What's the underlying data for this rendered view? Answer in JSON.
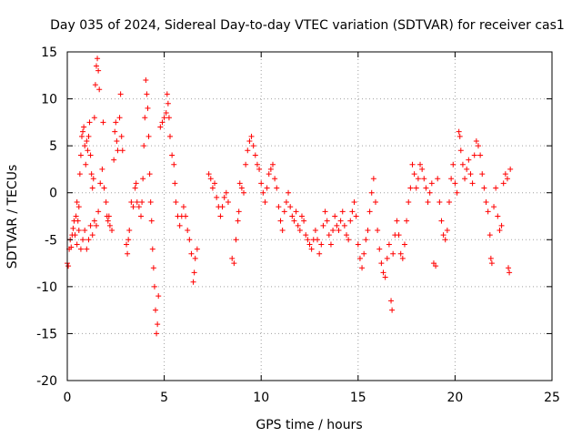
{
  "chart_data": {
    "type": "scatter",
    "title": "Day 035 of 2024, Sidereal Day-to-day VTEC variation (SDTVAR) for receiver cas1",
    "xlabel": "GPS time / hours",
    "ylabel": "SDTVAR / TECUs",
    "xlim": [
      0,
      25
    ],
    "ylim": [
      -20,
      15
    ],
    "xticks": [
      0,
      5,
      10,
      15,
      20,
      25
    ],
    "yticks": [
      -20,
      -15,
      -10,
      -5,
      0,
      5,
      10,
      15
    ],
    "xtick_labels": [
      "0",
      "5",
      "10",
      "15",
      "20",
      "25"
    ],
    "ytick_labels": [
      "-20",
      "-15",
      "-10",
      "-5",
      "0",
      "5",
      "10",
      "15"
    ],
    "grid": true,
    "marker": "+",
    "color": "#ff0000",
    "series": [
      {
        "name": "SDTVAR",
        "points": [
          [
            0.0,
            -7.5
          ],
          [
            0.05,
            -7.8
          ],
          [
            0.1,
            -6.0
          ],
          [
            0.15,
            -5.0
          ],
          [
            0.2,
            -5.8
          ],
          [
            0.25,
            -4.5
          ],
          [
            0.3,
            -3.8
          ],
          [
            0.35,
            -3.0
          ],
          [
            0.4,
            -4.5
          ],
          [
            0.45,
            -2.5
          ],
          [
            0.5,
            -1.0
          ],
          [
            0.55,
            -3.0
          ],
          [
            0.6,
            -1.5
          ],
          [
            0.65,
            2.0
          ],
          [
            0.7,
            4.0
          ],
          [
            0.75,
            6.0
          ],
          [
            0.8,
            6.5
          ],
          [
            0.85,
            7.0
          ],
          [
            0.9,
            5.0
          ],
          [
            0.95,
            3.0
          ],
          [
            1.0,
            5.5
          ],
          [
            1.05,
            4.5
          ],
          [
            1.1,
            6.0
          ],
          [
            1.15,
            7.5
          ],
          [
            1.2,
            4.0
          ],
          [
            1.25,
            2.0
          ],
          [
            1.3,
            0.5
          ],
          [
            1.35,
            1.5
          ],
          [
            1.4,
            8.0
          ],
          [
            1.45,
            11.5
          ],
          [
            1.5,
            13.5
          ],
          [
            1.55,
            14.3
          ],
          [
            1.6,
            13.0
          ],
          [
            1.65,
            11.0
          ],
          [
            0.5,
            -5.5
          ],
          [
            0.6,
            -4.0
          ],
          [
            0.7,
            -6.0
          ],
          [
            0.8,
            -5.0
          ],
          [
            0.9,
            -4.0
          ],
          [
            1.0,
            -6.0
          ],
          [
            1.1,
            -5.0
          ],
          [
            1.2,
            -3.5
          ],
          [
            1.3,
            -4.5
          ],
          [
            1.4,
            -3.0
          ],
          [
            1.5,
            -3.5
          ],
          [
            1.6,
            -2.0
          ],
          [
            1.7,
            1.0
          ],
          [
            1.8,
            2.5
          ],
          [
            1.85,
            7.5
          ],
          [
            1.9,
            0.5
          ],
          [
            2.0,
            -1.0
          ],
          [
            2.05,
            -2.5
          ],
          [
            2.1,
            -3.0
          ],
          [
            2.15,
            -2.5
          ],
          [
            2.2,
            -3.5
          ],
          [
            2.3,
            -4.0
          ],
          [
            2.4,
            3.5
          ],
          [
            2.45,
            6.5
          ],
          [
            2.5,
            7.5
          ],
          [
            2.55,
            5.5
          ],
          [
            2.6,
            4.5
          ],
          [
            2.7,
            8.0
          ],
          [
            2.75,
            10.5
          ],
          [
            2.8,
            6.0
          ],
          [
            2.85,
            4.5
          ],
          [
            3.05,
            -5.5
          ],
          [
            3.1,
            -6.5
          ],
          [
            3.15,
            -5.0
          ],
          [
            3.2,
            -4.0
          ],
          [
            3.3,
            -1.0
          ],
          [
            3.4,
            -1.5
          ],
          [
            3.5,
            0.5
          ],
          [
            3.55,
            1.0
          ],
          [
            3.6,
            -1.0
          ],
          [
            3.7,
            -1.5
          ],
          [
            3.8,
            -2.5
          ],
          [
            3.85,
            -1.0
          ],
          [
            3.9,
            1.5
          ],
          [
            3.95,
            5.0
          ],
          [
            4.0,
            8.0
          ],
          [
            4.05,
            12.0
          ],
          [
            4.1,
            10.5
          ],
          [
            4.15,
            9.0
          ],
          [
            4.2,
            6.0
          ],
          [
            4.25,
            2.0
          ],
          [
            4.3,
            -1.0
          ],
          [
            4.35,
            -3.0
          ],
          [
            4.4,
            -6.0
          ],
          [
            4.45,
            -8.0
          ],
          [
            4.5,
            -10.0
          ],
          [
            4.55,
            -12.5
          ],
          [
            4.6,
            -15.0
          ],
          [
            4.65,
            -14.0
          ],
          [
            4.7,
            -11.0
          ],
          [
            4.8,
            7.0
          ],
          [
            4.9,
            7.5
          ],
          [
            5.0,
            8.0
          ],
          [
            5.1,
            8.5
          ],
          [
            5.15,
            10.5
          ],
          [
            5.2,
            9.5
          ],
          [
            5.25,
            8.0
          ],
          [
            5.3,
            6.0
          ],
          [
            5.4,
            4.0
          ],
          [
            5.5,
            3.0
          ],
          [
            5.55,
            1.0
          ],
          [
            5.6,
            -1.0
          ],
          [
            5.7,
            -2.5
          ],
          [
            5.8,
            -3.5
          ],
          [
            5.9,
            -2.5
          ],
          [
            6.0,
            -1.5
          ],
          [
            6.1,
            -2.5
          ],
          [
            6.2,
            -4.0
          ],
          [
            6.3,
            -5.0
          ],
          [
            6.4,
            -6.5
          ],
          [
            6.5,
            -9.5
          ],
          [
            6.55,
            -8.5
          ],
          [
            6.6,
            -7.0
          ],
          [
            6.7,
            -6.0
          ],
          [
            7.3,
            2.0
          ],
          [
            7.4,
            1.5
          ],
          [
            7.5,
            0.5
          ],
          [
            7.6,
            1.0
          ],
          [
            7.7,
            -0.5
          ],
          [
            7.8,
            -1.5
          ],
          [
            7.9,
            -2.5
          ],
          [
            8.0,
            -1.5
          ],
          [
            8.1,
            -0.5
          ],
          [
            8.2,
            0.0
          ],
          [
            8.3,
            -1.0
          ],
          [
            8.5,
            -7.0
          ],
          [
            8.6,
            -7.5
          ],
          [
            8.7,
            -5.0
          ],
          [
            8.8,
            -3.0
          ],
          [
            8.85,
            -2.0
          ],
          [
            8.9,
            1.0
          ],
          [
            9.0,
            0.5
          ],
          [
            9.1,
            0.0
          ],
          [
            9.2,
            3.0
          ],
          [
            9.3,
            4.5
          ],
          [
            9.4,
            5.5
          ],
          [
            9.5,
            6.0
          ],
          [
            9.6,
            5.0
          ],
          [
            9.7,
            4.0
          ],
          [
            9.8,
            3.0
          ],
          [
            9.9,
            2.5
          ],
          [
            10.0,
            1.0
          ],
          [
            10.1,
            0.0
          ],
          [
            10.2,
            -1.0
          ],
          [
            10.3,
            0.5
          ],
          [
            10.4,
            2.0
          ],
          [
            10.5,
            2.5
          ],
          [
            10.6,
            3.0
          ],
          [
            10.7,
            1.5
          ],
          [
            10.8,
            0.5
          ],
          [
            10.9,
            -1.5
          ],
          [
            11.0,
            -3.0
          ],
          [
            11.1,
            -4.0
          ],
          [
            11.2,
            -2.0
          ],
          [
            11.3,
            -1.0
          ],
          [
            11.4,
            0.0
          ],
          [
            11.5,
            -1.5
          ],
          [
            11.6,
            -2.5
          ],
          [
            11.7,
            -3.0
          ],
          [
            11.8,
            -2.0
          ],
          [
            11.9,
            -3.5
          ],
          [
            12.0,
            -4.0
          ],
          [
            12.1,
            -2.5
          ],
          [
            12.2,
            -3.0
          ],
          [
            12.3,
            -4.5
          ],
          [
            12.4,
            -5.0
          ],
          [
            12.5,
            -5.5
          ],
          [
            12.6,
            -6.0
          ],
          [
            12.7,
            -5.0
          ],
          [
            12.8,
            -4.0
          ],
          [
            12.9,
            -5.0
          ],
          [
            13.0,
            -6.5
          ],
          [
            13.1,
            -5.5
          ],
          [
            13.2,
            -3.5
          ],
          [
            13.3,
            -2.0
          ],
          [
            13.4,
            -3.0
          ],
          [
            13.5,
            -4.5
          ],
          [
            13.6,
            -5.5
          ],
          [
            13.7,
            -4.0
          ],
          [
            13.8,
            -2.5
          ],
          [
            13.9,
            -3.5
          ],
          [
            14.0,
            -4.0
          ],
          [
            14.1,
            -3.0
          ],
          [
            14.2,
            -2.0
          ],
          [
            14.3,
            -3.5
          ],
          [
            14.4,
            -4.5
          ],
          [
            14.5,
            -5.0
          ],
          [
            14.6,
            -3.0
          ],
          [
            14.7,
            -2.0
          ],
          [
            14.8,
            -1.0
          ],
          [
            14.9,
            -2.5
          ],
          [
            15.0,
            -5.5
          ],
          [
            15.1,
            -7.0
          ],
          [
            15.2,
            -8.0
          ],
          [
            15.3,
            -6.5
          ],
          [
            15.4,
            -5.0
          ],
          [
            15.5,
            -4.0
          ],
          [
            15.6,
            -2.0
          ],
          [
            15.7,
            0.0
          ],
          [
            15.8,
            1.5
          ],
          [
            15.9,
            -1.0
          ],
          [
            16.0,
            -4.0
          ],
          [
            16.1,
            -6.0
          ],
          [
            16.2,
            -7.5
          ],
          [
            16.3,
            -8.5
          ],
          [
            16.4,
            -9.0
          ],
          [
            16.5,
            -7.0
          ],
          [
            16.6,
            -5.5
          ],
          [
            16.7,
            -11.5
          ],
          [
            16.75,
            -12.5
          ],
          [
            16.8,
            -6.5
          ],
          [
            16.9,
            -4.5
          ],
          [
            17.0,
            -3.0
          ],
          [
            17.1,
            -4.5
          ],
          [
            17.2,
            -6.5
          ],
          [
            17.3,
            -7.0
          ],
          [
            17.4,
            -5.5
          ],
          [
            17.5,
            -3.0
          ],
          [
            17.6,
            -1.0
          ],
          [
            17.7,
            0.5
          ],
          [
            17.8,
            3.0
          ],
          [
            17.9,
            2.0
          ],
          [
            18.0,
            0.5
          ],
          [
            18.1,
            1.5
          ],
          [
            18.2,
            3.0
          ],
          [
            18.3,
            2.5
          ],
          [
            18.4,
            1.5
          ],
          [
            18.5,
            0.5
          ],
          [
            18.6,
            -1.0
          ],
          [
            18.7,
            0.0
          ],
          [
            18.8,
            1.0
          ],
          [
            18.9,
            -7.5
          ],
          [
            19.0,
            -7.8
          ],
          [
            19.1,
            1.5
          ],
          [
            19.2,
            -1.0
          ],
          [
            19.3,
            -3.0
          ],
          [
            19.4,
            -4.5
          ],
          [
            19.5,
            -5.0
          ],
          [
            19.6,
            -4.0
          ],
          [
            19.7,
            -1.0
          ],
          [
            19.8,
            1.5
          ],
          [
            19.9,
            3.0
          ],
          [
            20.0,
            1.0
          ],
          [
            20.1,
            0.0
          ],
          [
            20.2,
            6.5
          ],
          [
            20.25,
            6.0
          ],
          [
            20.3,
            4.5
          ],
          [
            20.4,
            3.0
          ],
          [
            20.5,
            1.5
          ],
          [
            20.6,
            2.5
          ],
          [
            20.7,
            3.5
          ],
          [
            20.8,
            2.0
          ],
          [
            20.9,
            1.0
          ],
          [
            21.0,
            4.0
          ],
          [
            21.1,
            5.5
          ],
          [
            21.2,
            5.0
          ],
          [
            21.3,
            4.0
          ],
          [
            21.4,
            2.0
          ],
          [
            21.5,
            0.5
          ],
          [
            21.6,
            -1.0
          ],
          [
            21.7,
            -2.0
          ],
          [
            21.8,
            -4.5
          ],
          [
            21.85,
            -7.0
          ],
          [
            21.9,
            -7.5
          ],
          [
            22.0,
            -1.5
          ],
          [
            22.1,
            0.5
          ],
          [
            22.2,
            -2.5
          ],
          [
            22.3,
            -4.0
          ],
          [
            22.4,
            -3.5
          ],
          [
            22.5,
            1.0
          ],
          [
            22.6,
            2.0
          ],
          [
            22.7,
            1.5
          ],
          [
            22.75,
            -8.0
          ],
          [
            22.8,
            -8.5
          ],
          [
            22.85,
            2.5
          ]
        ]
      }
    ]
  }
}
